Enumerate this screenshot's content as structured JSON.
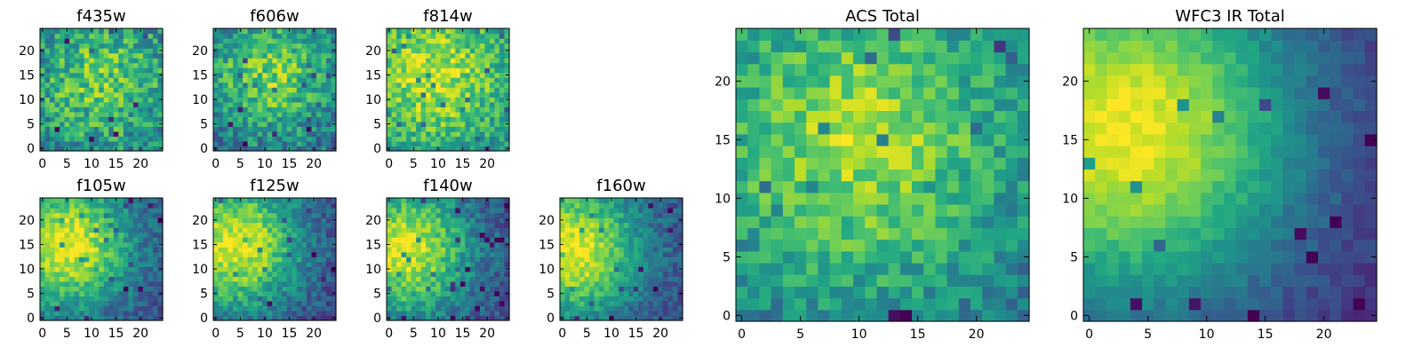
{
  "chart_data": {
    "type": "heatmap",
    "colormap": "viridis",
    "grid": "off",
    "panels": [
      {
        "title": "f435w",
        "size": 25,
        "xticks": [
          0,
          5,
          10,
          15,
          20
        ],
        "yticks": [
          0,
          5,
          10,
          15,
          20
        ],
        "center": [
          12,
          14
        ],
        "spread": 11,
        "base": 0.35,
        "amp": 0.4,
        "noise": 0.22,
        "seed": 11
      },
      {
        "title": "f606w",
        "size": 25,
        "xticks": [
          0,
          5,
          10,
          15,
          20
        ],
        "yticks": [
          0,
          5,
          10,
          15,
          20
        ],
        "center": [
          11,
          15
        ],
        "spread": 9,
        "base": 0.35,
        "amp": 0.45,
        "noise": 0.2,
        "seed": 23
      },
      {
        "title": "f814w",
        "size": 25,
        "xticks": [
          0,
          5,
          10,
          15,
          20
        ],
        "yticks": [
          0,
          5,
          10,
          15,
          20
        ],
        "center": [
          9,
          15
        ],
        "spread": 11,
        "base": 0.45,
        "amp": 0.45,
        "noise": 0.18,
        "seed": 37
      },
      {
        "title": "f105w",
        "size": 25,
        "xticks": [
          0,
          5,
          10,
          15,
          20
        ],
        "yticks": [
          0,
          5,
          10,
          15,
          20
        ],
        "center": [
          5,
          15
        ],
        "spread": 10,
        "base": 0.2,
        "amp": 0.75,
        "noise": 0.13,
        "seed": 41
      },
      {
        "title": "f125w",
        "size": 25,
        "xticks": [
          0,
          5,
          10,
          15,
          20
        ],
        "yticks": [
          0,
          5,
          10,
          15,
          20
        ],
        "center": [
          4,
          15
        ],
        "spread": 10,
        "base": 0.2,
        "amp": 0.75,
        "noise": 0.14,
        "seed": 53
      },
      {
        "title": "f140w",
        "size": 25,
        "xticks": [
          0,
          5,
          10,
          15,
          20
        ],
        "yticks": [
          0,
          5,
          10,
          15,
          20
        ],
        "center": [
          3,
          14
        ],
        "spread": 10,
        "base": 0.2,
        "amp": 0.75,
        "noise": 0.14,
        "seed": 67
      },
      {
        "title": "f160w",
        "size": 25,
        "xticks": [
          0,
          5,
          10,
          15,
          20
        ],
        "yticks": [
          0,
          5,
          10,
          15,
          20
        ],
        "center": [
          2,
          14
        ],
        "spread": 10,
        "base": 0.22,
        "amp": 0.75,
        "noise": 0.12,
        "seed": 79
      },
      {
        "title": "ACS Total",
        "size": 25,
        "xticks": [
          0,
          5,
          10,
          15,
          20
        ],
        "yticks": [
          0,
          5,
          10,
          15,
          20
        ],
        "center": [
          10,
          15
        ],
        "spread": 10,
        "base": 0.35,
        "amp": 0.5,
        "noise": 0.15,
        "seed": 97
      },
      {
        "title": "WFC3 IR Total",
        "size": 25,
        "xticks": [
          0,
          5,
          10,
          15,
          20
        ],
        "yticks": [
          0,
          5,
          10,
          15,
          20
        ],
        "center": [
          3,
          16
        ],
        "spread": 11,
        "base": 0.1,
        "amp": 0.88,
        "noise": 0.06,
        "seed": 131
      }
    ]
  }
}
